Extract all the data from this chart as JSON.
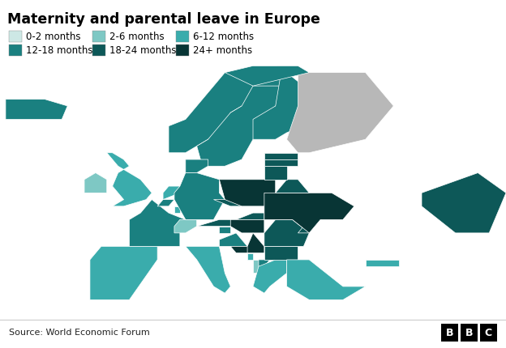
{
  "title": "Maternity and parental leave in Europe",
  "source": "Source: World Economic Forum",
  "categories": [
    "0-2 months",
    "2-6 months",
    "6-12 months",
    "12-18 months",
    "18-24 months",
    "24+ months"
  ],
  "colors": [
    "#cde8e5",
    "#7ec8c4",
    "#3aacac",
    "#1a8080",
    "#0d5858",
    "#083535"
  ],
  "background_color": "#ffffff",
  "no_data_color": "#c0c0c0",
  "gray_color": "#b8b8b8"
}
